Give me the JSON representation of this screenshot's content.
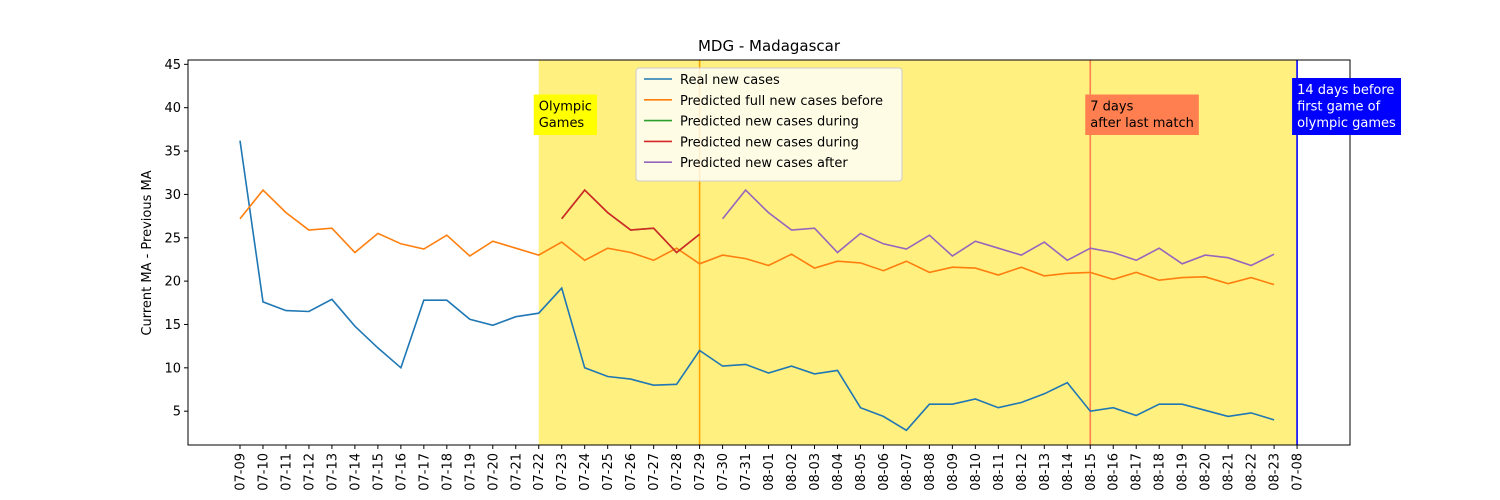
{
  "chart_data": {
    "type": "line",
    "title": "MDG - Madagascar",
    "y_label": "Current MA - Previous MA",
    "categories": [
      "07-09",
      "07-10",
      "07-11",
      "07-12",
      "07-13",
      "07-14",
      "07-15",
      "07-16",
      "07-17",
      "07-18",
      "07-19",
      "07-20",
      "07-21",
      "07-22",
      "07-23",
      "07-24",
      "07-25",
      "07-26",
      "07-27",
      "07-28",
      "07-29",
      "07-30",
      "07-31",
      "08-01",
      "08-02",
      "08-03",
      "08-04",
      "08-05",
      "08-06",
      "08-07",
      "08-08",
      "08-09",
      "08-10",
      "08-11",
      "08-12",
      "08-13",
      "08-14",
      "08-15",
      "08-16",
      "08-17",
      "08-18",
      "08-19",
      "08-20",
      "08-21",
      "08-22",
      "08-23",
      "07-08"
    ],
    "series": [
      {
        "name": "Real new cases",
        "color": "#1f77b4",
        "values": [
          36.2,
          17.6,
          16.6,
          16.5,
          17.9,
          14.8,
          12.3,
          10.0,
          17.8,
          17.8,
          15.6,
          14.9,
          15.9,
          16.3,
          19.2,
          10.0,
          9.0,
          8.7,
          8.0,
          8.1,
          12.0,
          10.2,
          10.4,
          9.4,
          10.2,
          9.3,
          9.7,
          5.4,
          4.4,
          2.8,
          5.8,
          5.8,
          6.4,
          5.4,
          6.0,
          7.0,
          8.3,
          5.0,
          5.4,
          4.5,
          5.8,
          5.8,
          5.1,
          4.4,
          4.8,
          4.0,
          null
        ]
      },
      {
        "name": "Predicted full new cases before",
        "color": "#ff7f0e",
        "values": [
          27.2,
          30.5,
          27.9,
          25.9,
          26.1,
          23.3,
          25.5,
          24.3,
          23.7,
          25.3,
          22.9,
          24.6,
          23.8,
          23.0,
          24.5,
          22.4,
          23.8,
          23.3,
          22.4,
          23.8,
          22.0,
          23.0,
          22.6,
          21.8,
          23.1,
          21.5,
          22.3,
          22.1,
          21.2,
          22.3,
          21.0,
          21.6,
          21.5,
          20.7,
          21.6,
          20.6,
          20.9,
          21.0,
          20.2,
          21.0,
          20.1,
          20.4,
          20.5,
          19.7,
          20.4,
          19.6,
          null
        ]
      },
      {
        "name": "Predicted new cases during",
        "color": "#2ca02c",
        "values": [
          null,
          null,
          null,
          null,
          null,
          null,
          null,
          null,
          null,
          null,
          null,
          null,
          null,
          null,
          27.2,
          30.5,
          27.9,
          25.9,
          26.1,
          23.3,
          25.4,
          null,
          null,
          null,
          null,
          null,
          null,
          null,
          null,
          null,
          null,
          null,
          null,
          null,
          null,
          null,
          null,
          null,
          null,
          null,
          null,
          null,
          null,
          null,
          null,
          null,
          null
        ]
      },
      {
        "name": "Predicted new cases during",
        "color": "#d62728",
        "values": [
          null,
          null,
          null,
          null,
          null,
          null,
          null,
          null,
          null,
          null,
          null,
          null,
          null,
          null,
          27.2,
          30.5,
          27.9,
          25.9,
          26.1,
          23.3,
          25.4,
          null,
          null,
          null,
          null,
          null,
          null,
          null,
          null,
          null,
          null,
          null,
          null,
          null,
          null,
          null,
          null,
          null,
          null,
          null,
          null,
          null,
          null,
          null,
          null,
          null,
          null
        ]
      },
      {
        "name": "Predicted new cases after",
        "color": "#9467bd",
        "values": [
          null,
          null,
          null,
          null,
          null,
          null,
          null,
          null,
          null,
          null,
          null,
          null,
          null,
          null,
          null,
          null,
          null,
          null,
          null,
          null,
          null,
          27.2,
          30.5,
          27.9,
          25.9,
          26.1,
          23.3,
          25.5,
          24.3,
          23.7,
          25.3,
          22.9,
          24.6,
          23.8,
          23.0,
          24.5,
          22.4,
          23.8,
          23.3,
          22.4,
          23.8,
          22.0,
          23.0,
          22.7,
          21.8,
          23.1,
          null
        ]
      }
    ],
    "span": {
      "from": "07-22",
      "to": "07-08",
      "color": "#fff080"
    },
    "markers": [
      {
        "at": "07-22",
        "lines": [
          "Olympic",
          "Games"
        ],
        "background": "#ffff00",
        "text_color": "#000000",
        "line_color": null
      },
      {
        "at": "07-29",
        "lines": [],
        "background": null,
        "text_color": null,
        "line_color": "#ffa500"
      },
      {
        "at": "08-15",
        "lines": [
          "7 days",
          "after last match"
        ],
        "background": "#ff7f50",
        "text_color": "#000000",
        "line_color": "#ff7f50"
      },
      {
        "at": "07-08",
        "lines": [
          "14 days before",
          "first game of",
          "olympic games"
        ],
        "background": "#0000ff",
        "text_color": "#ffffff",
        "line_color": "#0000ff"
      }
    ],
    "ylim": [
      1.1,
      45.5
    ],
    "yticks": [
      5,
      10,
      15,
      20,
      25,
      30,
      35,
      40,
      45
    ],
    "legend": "upper center"
  }
}
